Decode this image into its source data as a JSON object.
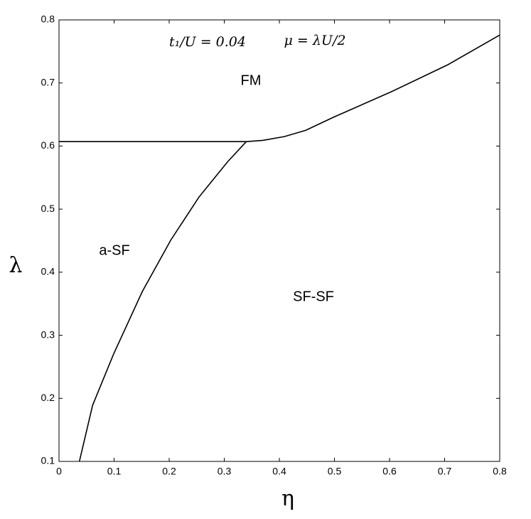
{
  "chart_data": {
    "type": "line",
    "xlabel": "η",
    "ylabel": "λ",
    "annotations": [
      "t₁/U = 0.04",
      "μ = λU/2",
      "FM",
      "a-SF",
      "SF-SF"
    ],
    "xlim": [
      0,
      0.8
    ],
    "ylim": [
      0.1,
      0.8
    ],
    "xticks": [
      0,
      0.1,
      0.2,
      0.3,
      0.4,
      0.5,
      0.6,
      0.7,
      0.8
    ],
    "yticks": [
      0.1,
      0.2,
      0.3,
      0.4,
      0.5,
      0.6,
      0.7,
      0.8
    ],
    "series": [
      {
        "color": "#000000",
        "x": [
          0,
          0.34
        ],
        "values": [
          0.607,
          0.607
        ]
      },
      {
        "color": "#000000",
        "x": [
          0.34,
          0.37,
          0.409,
          0.448,
          0.499,
          0.603,
          0.706,
          0.8
        ],
        "values": [
          0.607,
          0.609,
          0.615,
          0.625,
          0.646,
          0.686,
          0.729,
          0.776
        ]
      },
      {
        "color": "#000000",
        "x": [
          0.037,
          0.061,
          0.099,
          0.151,
          0.203,
          0.254,
          0.306,
          0.34
        ],
        "values": [
          0.1,
          0.189,
          0.27,
          0.369,
          0.451,
          0.519,
          0.575,
          0.607
        ]
      }
    ]
  }
}
